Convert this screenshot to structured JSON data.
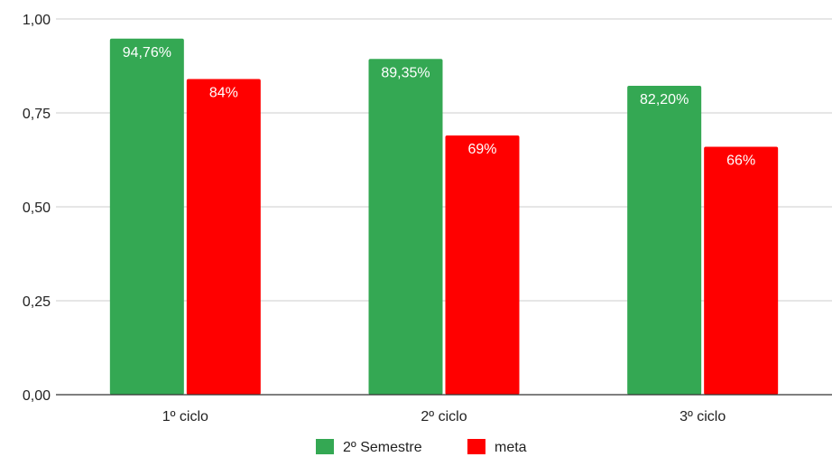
{
  "chart_data": {
    "type": "bar",
    "categories": [
      "1º ciclo",
      "2º ciclo",
      "3º ciclo"
    ],
    "series": [
      {
        "name": "2º Semestre",
        "values": [
          0.9476,
          0.8935,
          0.822
        ],
        "labels": [
          "94,76%",
          "89,35%",
          "82,20%"
        ],
        "color": "#34a853"
      },
      {
        "name": "meta",
        "values": [
          0.84,
          0.69,
          0.66
        ],
        "labels": [
          "84%",
          "69%",
          "66%"
        ],
        "color": "#ff0000"
      }
    ],
    "yticks": [
      0,
      0.25,
      0.5,
      0.75,
      1.0
    ],
    "ytick_labels": [
      "0,00",
      "0,25",
      "0,50",
      "0,75",
      "1,00"
    ],
    "ylim": [
      0,
      1.0
    ],
    "grid": true,
    "legend_position": "bottom",
    "title": "",
    "xlabel": "",
    "ylabel": ""
  }
}
